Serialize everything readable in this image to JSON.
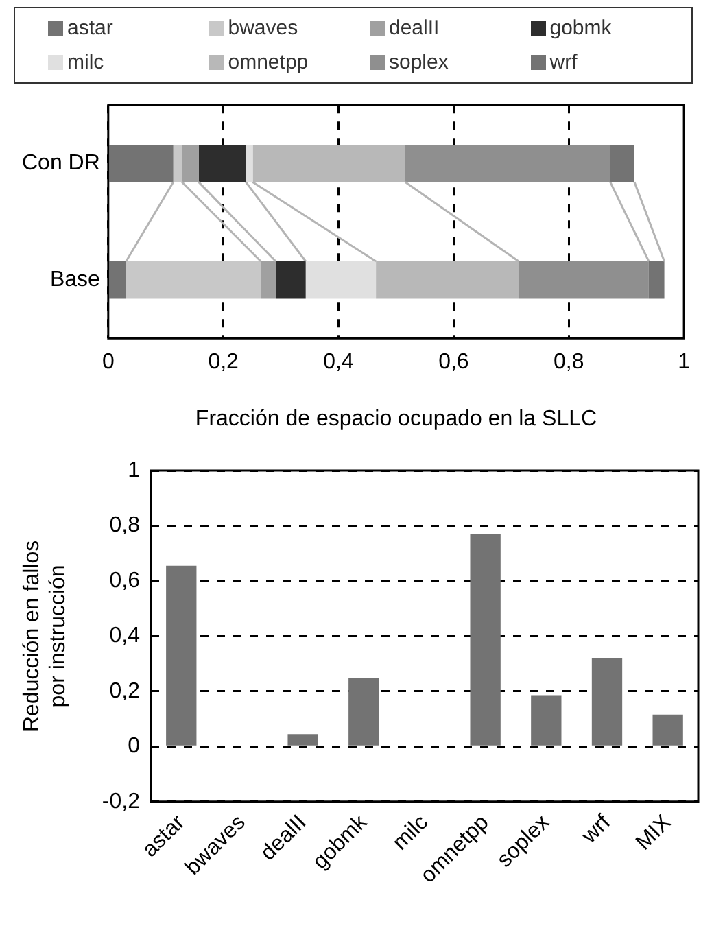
{
  "chart_data": [
    {
      "type": "bar",
      "orientation": "horizontal",
      "stacked": true,
      "categories": [
        "Con DR",
        "Base"
      ],
      "series": [
        {
          "name": "astar",
          "color": "#737373",
          "values": [
            0.113,
            0.031
          ]
        },
        {
          "name": "bwaves",
          "color": "#c8c8c8",
          "values": [
            0.015,
            0.234
          ]
        },
        {
          "name": "dealII",
          "color": "#a0a0a0",
          "values": [
            0.029,
            0.026
          ]
        },
        {
          "name": "gobmk",
          "color": "#2d2d2d",
          "values": [
            0.082,
            0.052
          ]
        },
        {
          "name": "milc",
          "color": "#e0e0e0",
          "values": [
            0.012,
            0.122
          ]
        },
        {
          "name": "omnetpp",
          "color": "#b8b8b8",
          "values": [
            0.265,
            0.248
          ]
        },
        {
          "name": "soplex",
          "color": "#8f8f8f",
          "values": [
            0.356,
            0.226
          ]
        },
        {
          "name": "wrf",
          "color": "#737373",
          "values": [
            0.042,
            0.027
          ]
        }
      ],
      "xlim": [
        0,
        1
      ],
      "xticks": [
        0,
        {
          "value": 0.2,
          "label": "0,2"
        },
        {
          "value": 0.4,
          "label": "0,4"
        },
        {
          "value": 0.6,
          "label": "0,6"
        },
        {
          "value": 0.8,
          "label": "0,8"
        },
        1
      ],
      "xlabel": "Fracción de espacio ocupado en la SLLC",
      "grid": "x",
      "legend": "top"
    },
    {
      "type": "bar",
      "categories": [
        "astar",
        "bwaves",
        "dealII",
        "gobmk",
        "milc",
        "omnetpp",
        "soplex",
        "wrf",
        "MIX"
      ],
      "values": [
        0.655,
        0,
        0.045,
        0.249,
        0,
        0.77,
        0.186,
        0.319,
        0.116
      ],
      "color": "#737373",
      "ylim": [
        -0.2,
        1
      ],
      "yticks": [
        {
          "value": -0.2,
          "label": "-0,2"
        },
        0,
        {
          "value": 0.2,
          "label": "0,2"
        },
        {
          "value": 0.4,
          "label": "0,4"
        },
        {
          "value": 0.6,
          "label": "0,6"
        },
        {
          "value": 0.8,
          "label": "0,8"
        },
        1
      ],
      "ylabel": "Reducción en fallos por instrucción",
      "grid": "y"
    }
  ]
}
